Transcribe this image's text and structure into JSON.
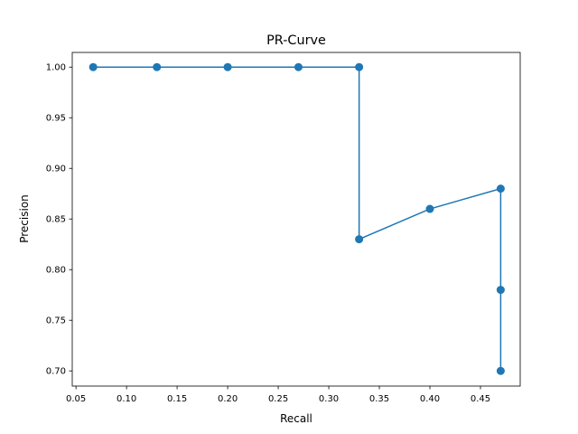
{
  "chart_data": {
    "type": "line",
    "title": "PR-Curve",
    "xlabel": "Recall",
    "ylabel": "Precision",
    "x": [
      0.067,
      0.13,
      0.2,
      0.27,
      0.33,
      0.33,
      0.4,
      0.47,
      0.47,
      0.47
    ],
    "y": [
      1.0,
      1.0,
      1.0,
      1.0,
      1.0,
      0.83,
      0.86,
      0.88,
      0.78,
      0.7
    ],
    "xlim": [
      0.0463,
      0.4893
    ],
    "ylim": [
      0.685,
      1.0145
    ],
    "xticks": [
      "0.05",
      "0.10",
      "0.15",
      "0.20",
      "0.25",
      "0.30",
      "0.35",
      "0.40",
      "0.45"
    ],
    "yticks": [
      "0.70",
      "0.75",
      "0.80",
      "0.85",
      "0.90",
      "0.95",
      "1.00"
    ],
    "grid": false,
    "marker": "circle",
    "color": "#1f77b4"
  }
}
